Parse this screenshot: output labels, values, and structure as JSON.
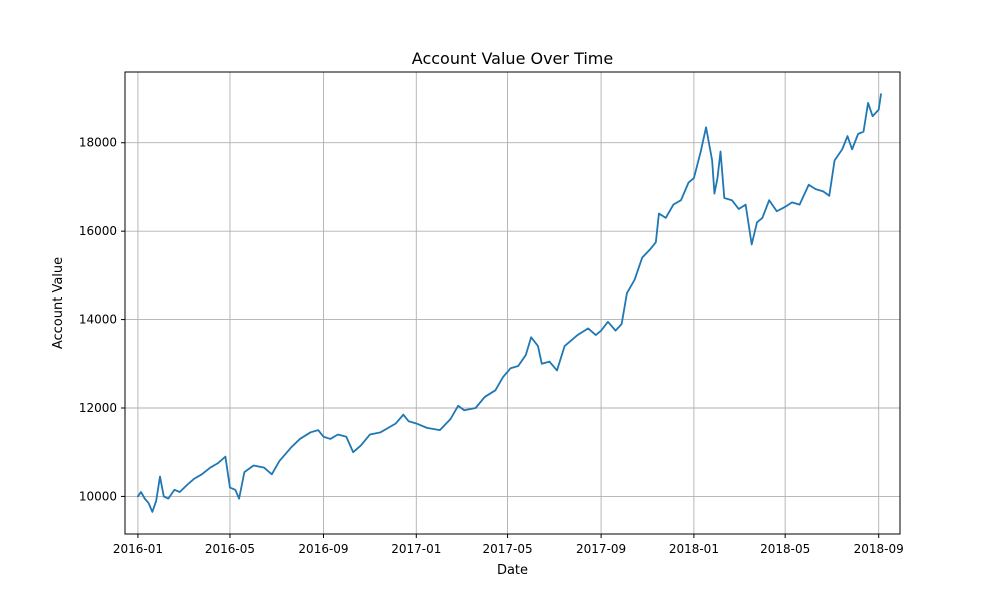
{
  "chart_data": {
    "type": "line",
    "title": "Account Value Over Time",
    "xlabel": "Date",
    "ylabel": "Account Value",
    "grid": true,
    "legend": "none",
    "xlim": [
      "2015-12-15",
      "2018-09-29"
    ],
    "ylim": [
      9150,
      19600
    ],
    "x_ticks": [
      "2016-01-01",
      "2016-05-01",
      "2016-09-01",
      "2017-01-01",
      "2017-05-01",
      "2017-09-01",
      "2018-01-01",
      "2018-05-01",
      "2018-09-01"
    ],
    "x_tick_labels": [
      "2016-01",
      "2016-05",
      "2016-09",
      "2017-01",
      "2017-05",
      "2017-09",
      "2018-01",
      "2018-05",
      "2018-09"
    ],
    "y_ticks": [
      10000,
      12000,
      14000,
      16000,
      18000
    ],
    "y_tick_labels": [
      "10000",
      "12000",
      "14000",
      "16000",
      "18000"
    ],
    "series": [
      {
        "color": "#1f77b4",
        "points": [
          [
            "2016-01-01",
            10000
          ],
          [
            "2016-01-05",
            10100
          ],
          [
            "2016-01-10",
            9950
          ],
          [
            "2016-01-15",
            9850
          ],
          [
            "2016-01-20",
            9650
          ],
          [
            "2016-01-25",
            9900
          ],
          [
            "2016-01-30",
            10450
          ],
          [
            "2016-02-04",
            10000
          ],
          [
            "2016-02-10",
            9950
          ],
          [
            "2016-02-18",
            10150
          ],
          [
            "2016-02-25",
            10100
          ],
          [
            "2016-03-05",
            10250
          ],
          [
            "2016-03-15",
            10400
          ],
          [
            "2016-03-25",
            10500
          ],
          [
            "2016-04-05",
            10650
          ],
          [
            "2016-04-15",
            10750
          ],
          [
            "2016-04-25",
            10900
          ],
          [
            "2016-05-01",
            10200
          ],
          [
            "2016-05-08",
            10150
          ],
          [
            "2016-05-13",
            9950
          ],
          [
            "2016-05-20",
            10550
          ],
          [
            "2016-06-01",
            10700
          ],
          [
            "2016-06-15",
            10650
          ],
          [
            "2016-06-25",
            10500
          ],
          [
            "2016-07-05",
            10800
          ],
          [
            "2016-07-20",
            11100
          ],
          [
            "2016-08-01",
            11300
          ],
          [
            "2016-08-15",
            11450
          ],
          [
            "2016-08-25",
            11500
          ],
          [
            "2016-09-01",
            11350
          ],
          [
            "2016-09-10",
            11300
          ],
          [
            "2016-09-20",
            11400
          ],
          [
            "2016-10-01",
            11350
          ],
          [
            "2016-10-10",
            11000
          ],
          [
            "2016-10-20",
            11150
          ],
          [
            "2016-11-01",
            11400
          ],
          [
            "2016-11-15",
            11450
          ],
          [
            "2016-11-25",
            11550
          ],
          [
            "2016-12-05",
            11650
          ],
          [
            "2016-12-15",
            11850
          ],
          [
            "2016-12-22",
            11700
          ],
          [
            "2017-01-01",
            11650
          ],
          [
            "2017-01-15",
            11550
          ],
          [
            "2017-02-01",
            11500
          ],
          [
            "2017-02-15",
            11750
          ],
          [
            "2017-02-25",
            12050
          ],
          [
            "2017-03-05",
            11950
          ],
          [
            "2017-03-20",
            12000
          ],
          [
            "2017-04-01",
            12250
          ],
          [
            "2017-04-15",
            12400
          ],
          [
            "2017-04-25",
            12700
          ],
          [
            "2017-05-05",
            12900
          ],
          [
            "2017-05-15",
            12950
          ],
          [
            "2017-05-25",
            13200
          ],
          [
            "2017-06-01",
            13600
          ],
          [
            "2017-06-10",
            13400
          ],
          [
            "2017-06-15",
            13000
          ],
          [
            "2017-06-25",
            13050
          ],
          [
            "2017-07-05",
            12850
          ],
          [
            "2017-07-15",
            13400
          ],
          [
            "2017-08-01",
            13650
          ],
          [
            "2017-08-15",
            13800
          ],
          [
            "2017-08-25",
            13650
          ],
          [
            "2017-09-01",
            13750
          ],
          [
            "2017-09-10",
            13950
          ],
          [
            "2017-09-20",
            13750
          ],
          [
            "2017-09-28",
            13900
          ],
          [
            "2017-10-05",
            14600
          ],
          [
            "2017-10-15",
            14900
          ],
          [
            "2017-10-25",
            15400
          ],
          [
            "2017-11-05",
            15600
          ],
          [
            "2017-11-12",
            15750
          ],
          [
            "2017-11-16",
            16400
          ],
          [
            "2017-11-25",
            16300
          ],
          [
            "2017-12-05",
            16600
          ],
          [
            "2017-12-15",
            16700
          ],
          [
            "2017-12-25",
            17100
          ],
          [
            "2018-01-01",
            17200
          ],
          [
            "2018-01-10",
            17800
          ],
          [
            "2018-01-17",
            18350
          ],
          [
            "2018-01-25",
            17600
          ],
          [
            "2018-01-28",
            16850
          ],
          [
            "2018-02-01",
            17200
          ],
          [
            "2018-02-05",
            17800
          ],
          [
            "2018-02-10",
            16750
          ],
          [
            "2018-02-20",
            16700
          ],
          [
            "2018-03-01",
            16500
          ],
          [
            "2018-03-10",
            16600
          ],
          [
            "2018-03-18",
            15700
          ],
          [
            "2018-03-25",
            16200
          ],
          [
            "2018-04-01",
            16300
          ],
          [
            "2018-04-10",
            16700
          ],
          [
            "2018-04-20",
            16450
          ],
          [
            "2018-05-01",
            16550
          ],
          [
            "2018-05-10",
            16650
          ],
          [
            "2018-05-20",
            16600
          ],
          [
            "2018-06-01",
            17050
          ],
          [
            "2018-06-10",
            16950
          ],
          [
            "2018-06-20",
            16900
          ],
          [
            "2018-06-28",
            16800
          ],
          [
            "2018-07-05",
            17600
          ],
          [
            "2018-07-15",
            17850
          ],
          [
            "2018-07-22",
            18150
          ],
          [
            "2018-07-28",
            17850
          ],
          [
            "2018-08-05",
            18200
          ],
          [
            "2018-08-12",
            18250
          ],
          [
            "2018-08-18",
            18900
          ],
          [
            "2018-08-24",
            18600
          ],
          [
            "2018-09-01",
            18750
          ],
          [
            "2018-09-04",
            19100
          ]
        ]
      }
    ]
  }
}
